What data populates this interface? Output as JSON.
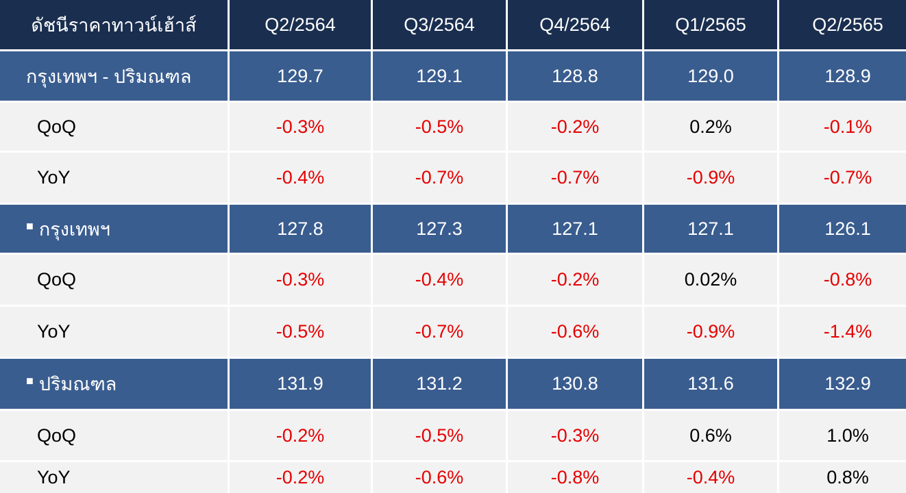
{
  "header": {
    "label": "ดัชนีราคาทาวน์เฮ้าส์",
    "periods": [
      "Q2/2564",
      "Q3/2564",
      "Q4/2564",
      "Q1/2565",
      "Q2/2565"
    ]
  },
  "bullet": "■",
  "rows": [
    {
      "kind": "sec",
      "label": "กรุงเทพฯ - ปริมณฑล",
      "bullet": false,
      "values": [
        "129.7",
        "129.1",
        "128.8",
        "129.0",
        "128.9"
      ]
    },
    {
      "kind": "sub",
      "label": "QoQ",
      "values": [
        "-0.3%",
        "-0.5%",
        "-0.2%",
        "0.2%",
        "-0.1%"
      ]
    },
    {
      "kind": "sub",
      "label": "YoY",
      "values": [
        "-0.4%",
        "-0.7%",
        "-0.7%",
        "-0.9%",
        "-0.7%"
      ]
    },
    {
      "kind": "sec",
      "label": "กรุงเทพฯ",
      "bullet": true,
      "values": [
        "127.8",
        "127.3",
        "127.1",
        "127.1",
        "126.1"
      ]
    },
    {
      "kind": "sub",
      "label": "QoQ",
      "values": [
        "-0.3%",
        "-0.4%",
        "-0.2%",
        "0.02%",
        "-0.8%"
      ]
    },
    {
      "kind": "sub",
      "label": "YoY",
      "values": [
        "-0.5%",
        "-0.7%",
        "-0.6%",
        "-0.9%",
        "-1.4%"
      ]
    },
    {
      "kind": "sec",
      "label": "ปริมณฑล",
      "bullet": true,
      "values": [
        "131.9",
        "131.2",
        "130.8",
        "131.6",
        "132.9"
      ]
    },
    {
      "kind": "sub",
      "label": "QoQ",
      "values": [
        "-0.2%",
        "-0.5%",
        "-0.3%",
        "0.6%",
        "1.0%"
      ]
    },
    {
      "kind": "sub",
      "label": "YoY",
      "values": [
        "-0.2%",
        "-0.6%",
        "-0.8%",
        "-0.4%",
        "0.8%"
      ]
    }
  ],
  "colors": {
    "header_bg": "#1a2e4f",
    "section_bg": "#3a5d8f",
    "sub_bg": "#f2f2f2",
    "negative": "#e60000",
    "positive": "#000000"
  }
}
